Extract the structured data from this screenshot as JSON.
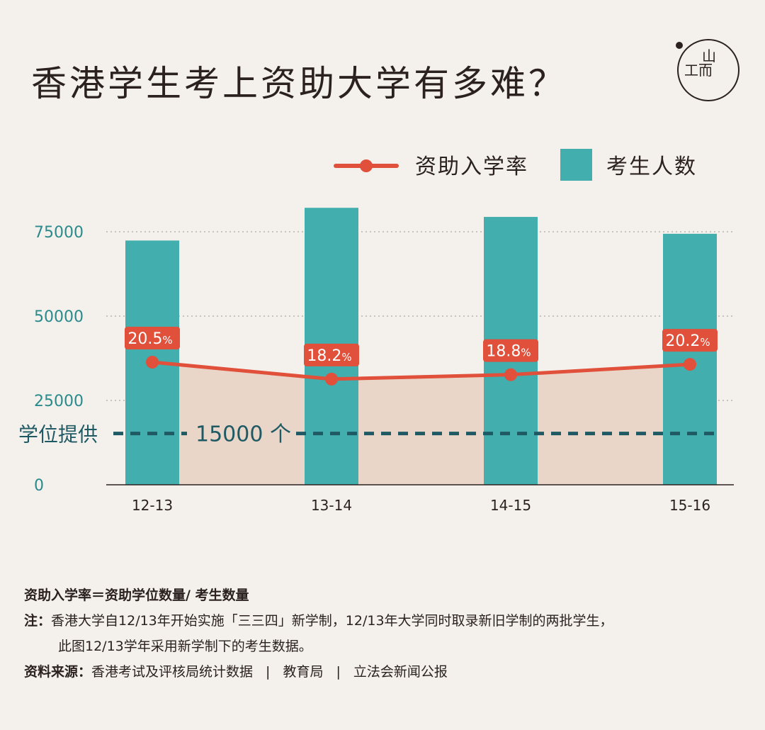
{
  "title": "香港学生考上资助大学有多难？",
  "logo": {
    "text_top": "山",
    "text_bottom": "工而"
  },
  "colors": {
    "bar": "#42aeae",
    "line": "#e0503a",
    "area": "#e9d6c9",
    "reference": "#1f5a64",
    "text": "#2b2220",
    "axis": "#2a8a8c"
  },
  "chart_data": {
    "type": "bar",
    "categories": [
      "12-13",
      "13-14",
      "14-15",
      "15-16"
    ],
    "series": [
      {
        "name": "考生人数",
        "type": "bar",
        "values": [
          72400,
          82100,
          79400,
          74400
        ]
      },
      {
        "name": "资助入学率",
        "type": "line",
        "values": [
          20.5,
          18.2,
          18.8,
          20.2
        ],
        "labels": [
          "20.5",
          "18.2",
          "18.8",
          "20.2"
        ],
        "unit": "%"
      }
    ],
    "ylim": [
      0,
      75000
    ],
    "yticks": [
      0,
      25000,
      50000,
      75000
    ],
    "ytick_labels": [
      "0",
      "25000",
      "50000",
      "75000"
    ],
    "reference": {
      "label": "学位提供",
      "value": 15000,
      "value_label": "15000 个"
    },
    "legend": [
      {
        "label": "资助入学率",
        "type": "line"
      },
      {
        "label": "考生人数",
        "type": "bar"
      }
    ],
    "legend_position": "top-right",
    "grid": true
  },
  "notes": {
    "formula": "资助入学率＝资助学位数量/ 考生数量",
    "note_label": "注：",
    "note_line1": "香港大学自12/13年开始实施「三三四」新学制，12/13年大学同时取录新旧学制的两批学生，",
    "note_line2": "此图12/13学年采用新学制下的考生数据。",
    "source_label": "资料来源：",
    "sources": [
      "香港考试及评核局统计数据",
      "教育局",
      "立法会新闻公报"
    ],
    "separator": "|"
  }
}
